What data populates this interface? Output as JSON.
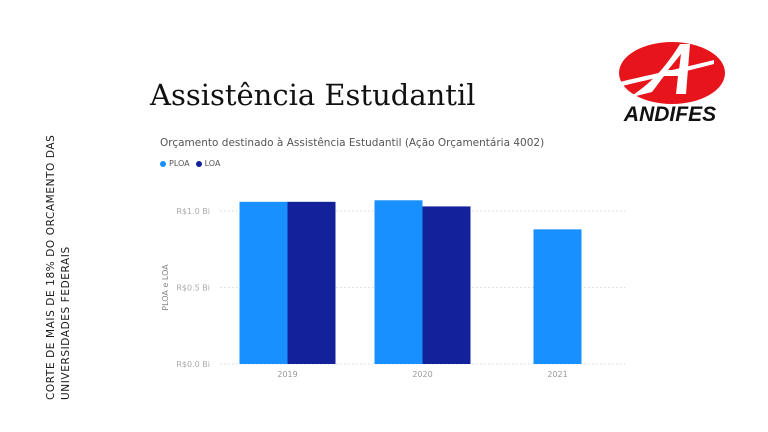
{
  "side_note": {
    "line1": "CORTE DE MAIS DE 18% DO ORCAMENTO DAS",
    "line2": "UNIVERSIDADES FEDERAIS"
  },
  "page_title": "Assistência Estudantil",
  "logo": {
    "text": "ANDIFES",
    "colors": {
      "red": "#e8141b",
      "white": "#ffffff"
    }
  },
  "chart_data": {
    "type": "bar",
    "title": "Orçamento destinado à Assistência Estudantil (Ação Orçamentária 4002)",
    "xlabel": "",
    "ylabel": "PLOA e LOA",
    "categories": [
      "2019",
      "2020",
      "2021"
    ],
    "series": [
      {
        "name": "PLOA",
        "color": "#1890ff",
        "values": [
          1.06,
          1.07,
          0.88
        ]
      },
      {
        "name": "LOA",
        "color": "#13229a",
        "values": [
          1.06,
          1.03,
          null
        ]
      }
    ],
    "ylim": [
      0,
      1.0
    ],
    "yticks": [
      {
        "value": 0,
        "label": "R$0.0 Bi"
      },
      {
        "value": 0.5,
        "label": "R$0.5 Bi"
      },
      {
        "value": 1.0,
        "label": "R$1.0 Bi"
      }
    ],
    "grid": true,
    "legend_position": "top-left"
  }
}
